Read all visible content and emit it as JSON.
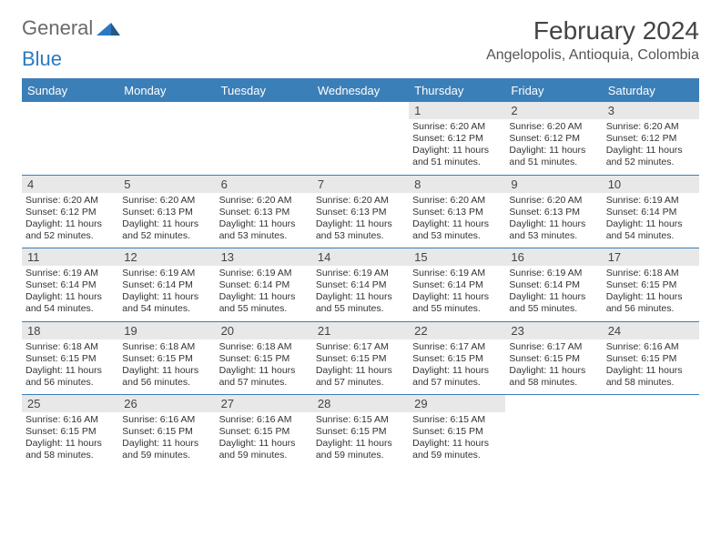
{
  "brand": {
    "part1": "General",
    "part2": "Blue"
  },
  "title": "February 2024",
  "location": "Angelopolis, Antioquia, Colombia",
  "colors": {
    "header_bg": "#3b7fb8",
    "header_fg": "#ffffff",
    "date_bg": "#e8e8e8",
    "border": "#3b7fb8",
    "logo_gray": "#6a6a6a",
    "logo_blue": "#2b7ac0"
  },
  "day_headers": [
    "Sunday",
    "Monday",
    "Tuesday",
    "Wednesday",
    "Thursday",
    "Friday",
    "Saturday"
  ],
  "weeks": [
    [
      null,
      null,
      null,
      null,
      {
        "n": "1",
        "sunrise": "Sunrise: 6:20 AM",
        "sunset": "Sunset: 6:12 PM",
        "daylight": "Daylight: 11 hours and 51 minutes."
      },
      {
        "n": "2",
        "sunrise": "Sunrise: 6:20 AM",
        "sunset": "Sunset: 6:12 PM",
        "daylight": "Daylight: 11 hours and 51 minutes."
      },
      {
        "n": "3",
        "sunrise": "Sunrise: 6:20 AM",
        "sunset": "Sunset: 6:12 PM",
        "daylight": "Daylight: 11 hours and 52 minutes."
      }
    ],
    [
      {
        "n": "4",
        "sunrise": "Sunrise: 6:20 AM",
        "sunset": "Sunset: 6:12 PM",
        "daylight": "Daylight: 11 hours and 52 minutes."
      },
      {
        "n": "5",
        "sunrise": "Sunrise: 6:20 AM",
        "sunset": "Sunset: 6:13 PM",
        "daylight": "Daylight: 11 hours and 52 minutes."
      },
      {
        "n": "6",
        "sunrise": "Sunrise: 6:20 AM",
        "sunset": "Sunset: 6:13 PM",
        "daylight": "Daylight: 11 hours and 53 minutes."
      },
      {
        "n": "7",
        "sunrise": "Sunrise: 6:20 AM",
        "sunset": "Sunset: 6:13 PM",
        "daylight": "Daylight: 11 hours and 53 minutes."
      },
      {
        "n": "8",
        "sunrise": "Sunrise: 6:20 AM",
        "sunset": "Sunset: 6:13 PM",
        "daylight": "Daylight: 11 hours and 53 minutes."
      },
      {
        "n": "9",
        "sunrise": "Sunrise: 6:20 AM",
        "sunset": "Sunset: 6:13 PM",
        "daylight": "Daylight: 11 hours and 53 minutes."
      },
      {
        "n": "10",
        "sunrise": "Sunrise: 6:19 AM",
        "sunset": "Sunset: 6:14 PM",
        "daylight": "Daylight: 11 hours and 54 minutes."
      }
    ],
    [
      {
        "n": "11",
        "sunrise": "Sunrise: 6:19 AM",
        "sunset": "Sunset: 6:14 PM",
        "daylight": "Daylight: 11 hours and 54 minutes."
      },
      {
        "n": "12",
        "sunrise": "Sunrise: 6:19 AM",
        "sunset": "Sunset: 6:14 PM",
        "daylight": "Daylight: 11 hours and 54 minutes."
      },
      {
        "n": "13",
        "sunrise": "Sunrise: 6:19 AM",
        "sunset": "Sunset: 6:14 PM",
        "daylight": "Daylight: 11 hours and 55 minutes."
      },
      {
        "n": "14",
        "sunrise": "Sunrise: 6:19 AM",
        "sunset": "Sunset: 6:14 PM",
        "daylight": "Daylight: 11 hours and 55 minutes."
      },
      {
        "n": "15",
        "sunrise": "Sunrise: 6:19 AM",
        "sunset": "Sunset: 6:14 PM",
        "daylight": "Daylight: 11 hours and 55 minutes."
      },
      {
        "n": "16",
        "sunrise": "Sunrise: 6:19 AM",
        "sunset": "Sunset: 6:14 PM",
        "daylight": "Daylight: 11 hours and 55 minutes."
      },
      {
        "n": "17",
        "sunrise": "Sunrise: 6:18 AM",
        "sunset": "Sunset: 6:15 PM",
        "daylight": "Daylight: 11 hours and 56 minutes."
      }
    ],
    [
      {
        "n": "18",
        "sunrise": "Sunrise: 6:18 AM",
        "sunset": "Sunset: 6:15 PM",
        "daylight": "Daylight: 11 hours and 56 minutes."
      },
      {
        "n": "19",
        "sunrise": "Sunrise: 6:18 AM",
        "sunset": "Sunset: 6:15 PM",
        "daylight": "Daylight: 11 hours and 56 minutes."
      },
      {
        "n": "20",
        "sunrise": "Sunrise: 6:18 AM",
        "sunset": "Sunset: 6:15 PM",
        "daylight": "Daylight: 11 hours and 57 minutes."
      },
      {
        "n": "21",
        "sunrise": "Sunrise: 6:17 AM",
        "sunset": "Sunset: 6:15 PM",
        "daylight": "Daylight: 11 hours and 57 minutes."
      },
      {
        "n": "22",
        "sunrise": "Sunrise: 6:17 AM",
        "sunset": "Sunset: 6:15 PM",
        "daylight": "Daylight: 11 hours and 57 minutes."
      },
      {
        "n": "23",
        "sunrise": "Sunrise: 6:17 AM",
        "sunset": "Sunset: 6:15 PM",
        "daylight": "Daylight: 11 hours and 58 minutes."
      },
      {
        "n": "24",
        "sunrise": "Sunrise: 6:16 AM",
        "sunset": "Sunset: 6:15 PM",
        "daylight": "Daylight: 11 hours and 58 minutes."
      }
    ],
    [
      {
        "n": "25",
        "sunrise": "Sunrise: 6:16 AM",
        "sunset": "Sunset: 6:15 PM",
        "daylight": "Daylight: 11 hours and 58 minutes."
      },
      {
        "n": "26",
        "sunrise": "Sunrise: 6:16 AM",
        "sunset": "Sunset: 6:15 PM",
        "daylight": "Daylight: 11 hours and 59 minutes."
      },
      {
        "n": "27",
        "sunrise": "Sunrise: 6:16 AM",
        "sunset": "Sunset: 6:15 PM",
        "daylight": "Daylight: 11 hours and 59 minutes."
      },
      {
        "n": "28",
        "sunrise": "Sunrise: 6:15 AM",
        "sunset": "Sunset: 6:15 PM",
        "daylight": "Daylight: 11 hours and 59 minutes."
      },
      {
        "n": "29",
        "sunrise": "Sunrise: 6:15 AM",
        "sunset": "Sunset: 6:15 PM",
        "daylight": "Daylight: 11 hours and 59 minutes."
      },
      null,
      null
    ]
  ]
}
